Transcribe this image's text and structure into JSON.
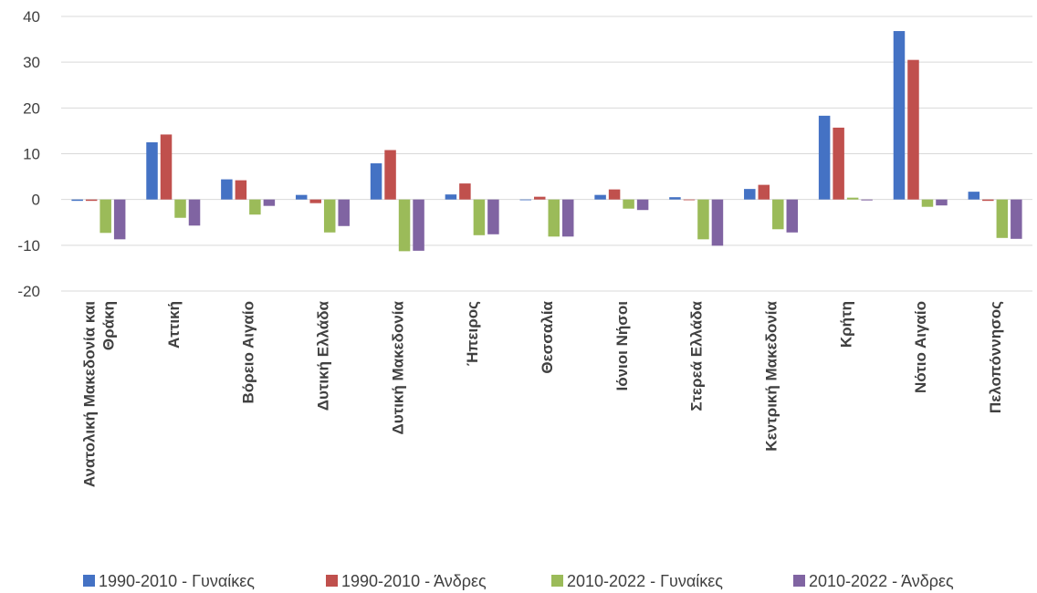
{
  "chart_data": {
    "type": "bar",
    "categories": [
      [
        "Ανατολική Μακεδονία και",
        "Θράκη"
      ],
      [
        "Αττική"
      ],
      [
        "Βόρειο Αιγαίο"
      ],
      [
        "Δυτική Ελλάδα"
      ],
      [
        "Δυτική Μακεδονία"
      ],
      [
        "Ήπειρος"
      ],
      [
        "Θεσσαλία"
      ],
      [
        "Ιόνιοι Νήσοι"
      ],
      [
        "Στερεά Ελλάδα"
      ],
      [
        "Κεντρική Μακεδονία"
      ],
      [
        "Κρήτη"
      ],
      [
        "Νότιο Αιγαίο"
      ],
      [
        "Πελοπόννησος"
      ]
    ],
    "series": [
      {
        "name": "1990-2010 - Γυναίκες",
        "color": "#4472C4",
        "values": [
          -0.3,
          12.5,
          4.4,
          1.0,
          7.9,
          1.1,
          0.0,
          1.0,
          0.5,
          2.3,
          18.3,
          36.8,
          1.7
        ]
      },
      {
        "name": "1990-2010 - Άνδρες",
        "color": "#C0504D",
        "values": [
          -0.3,
          14.2,
          4.2,
          -0.8,
          10.8,
          3.5,
          0.6,
          2.2,
          0.0,
          3.2,
          15.7,
          30.5,
          -0.3
        ]
      },
      {
        "name": "2010-2022 - Γυναίκες",
        "color": "#9BBB59",
        "values": [
          -7.3,
          -4.0,
          -3.3,
          -7.2,
          -11.3,
          -7.8,
          -8.1,
          -2.0,
          -8.7,
          -6.5,
          0.4,
          -1.6,
          -8.4
        ]
      },
      {
        "name": "2010-2022 - Άνδρες",
        "color": "#8064A2",
        "values": [
          -8.7,
          -5.7,
          -1.4,
          -5.8,
          -11.2,
          -7.6,
          -8.1,
          -2.3,
          -10.1,
          -7.2,
          -0.2,
          -1.3,
          -8.6
        ]
      }
    ],
    "yticks": [
      "40",
      "30",
      "20",
      "10",
      "0",
      "-10",
      "-20"
    ],
    "ylim": [
      -20,
      40
    ],
    "grid": true,
    "legend": "bottom"
  }
}
